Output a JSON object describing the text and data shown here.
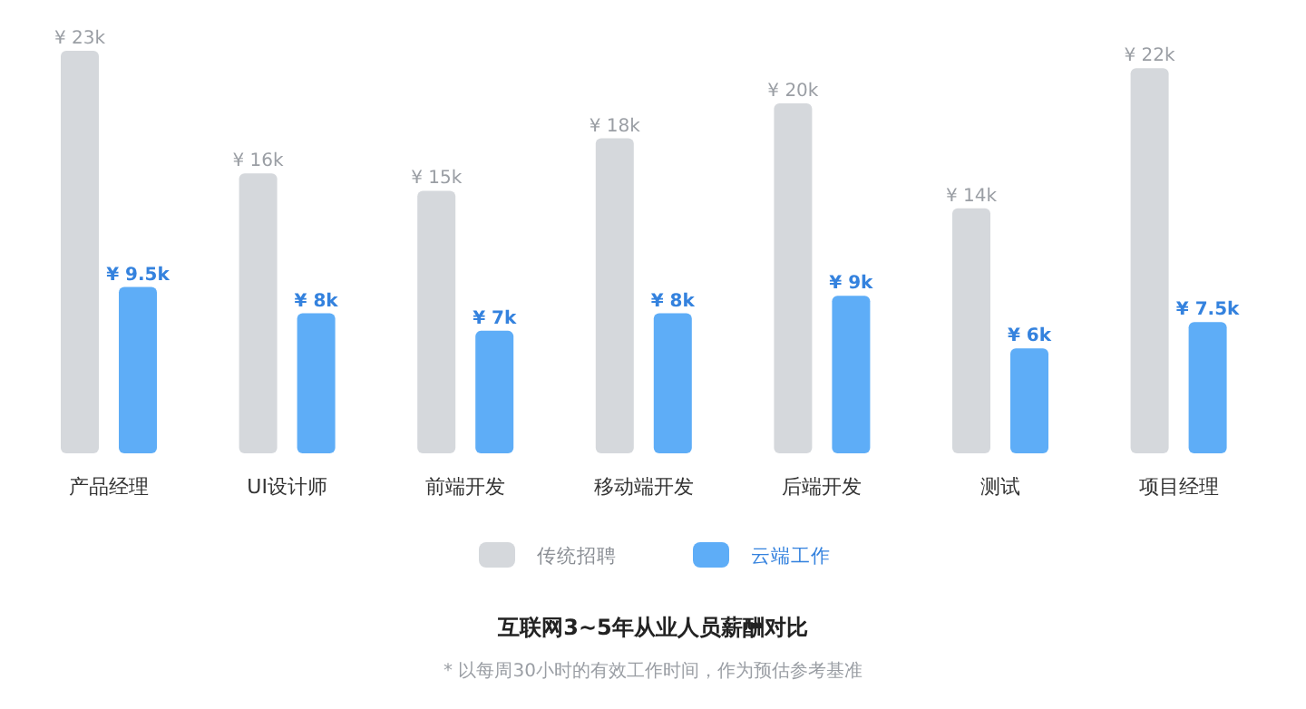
{
  "chart_data": {
    "type": "bar",
    "title": "互联网3~5年从业人员薪酬对比",
    "annotations": [
      "* 以每周30小时的有效工作时间，作为预估参考基准"
    ],
    "categories": [
      "产品经理",
      "UI设计师",
      "前端开发",
      "移动端开发",
      "后端开发",
      "测试",
      "项目经理"
    ],
    "series": [
      {
        "name": "传统招聘",
        "color": "#d5d8dc",
        "values": [
          23,
          16,
          15,
          18,
          20,
          14,
          22
        ],
        "value_labels": [
          "¥ 23k",
          "¥ 16k",
          "¥ 15k",
          "¥ 18k",
          "¥ 20k",
          "¥ 14k",
          "¥ 22k"
        ]
      },
      {
        "name": "云端工作",
        "color": "#5eadf7",
        "values": [
          9.5,
          8,
          7,
          8,
          9,
          6,
          7.5
        ],
        "value_labels": [
          "¥ 9.5k",
          "¥ 8k",
          "¥ 7k",
          "¥ 8k",
          "¥ 9k",
          "¥ 6k",
          "¥ 7.5k"
        ]
      }
    ],
    "legend": "bottom"
  }
}
